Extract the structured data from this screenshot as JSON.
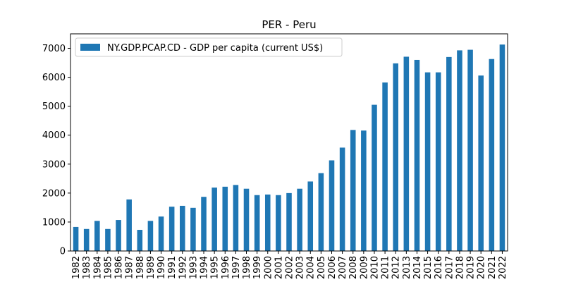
{
  "chart_data": {
    "type": "bar",
    "title": "PER - Peru",
    "xlabel": "",
    "ylabel": "",
    "ylim": [
      0,
      7500
    ],
    "yticks": [
      0,
      1000,
      2000,
      3000,
      4000,
      5000,
      6000,
      7000
    ],
    "grid": false,
    "legend_position": "top-left",
    "color": "#1f77b4",
    "categories": [
      "1982",
      "1983",
      "1984",
      "1985",
      "1986",
      "1987",
      "1988",
      "1989",
      "1990",
      "1991",
      "1992",
      "1993",
      "1994",
      "1995",
      "1996",
      "1997",
      "1998",
      "1999",
      "2000",
      "2001",
      "2002",
      "2003",
      "2004",
      "2005",
      "2006",
      "2007",
      "2008",
      "2009",
      "2010",
      "2011",
      "2012",
      "2013",
      "2014",
      "2015",
      "2016",
      "2017",
      "2018",
      "2019",
      "2020",
      "2021",
      "2022"
    ],
    "series": [
      {
        "name": "NY.GDP.PCAP.CD - GDP per capita (current US$)",
        "values": [
          830,
          760,
          1040,
          760,
          1070,
          1780,
          730,
          1040,
          1190,
          1530,
          1560,
          1490,
          1870,
          2190,
          2220,
          2280,
          2150,
          1930,
          1950,
          1930,
          2000,
          2150,
          2400,
          2690,
          3130,
          3570,
          4180,
          4160,
          5050,
          5820,
          6480,
          6710,
          6600,
          6170,
          6170,
          6700,
          6930,
          6950,
          6060,
          6630,
          7130
        ]
      }
    ]
  }
}
